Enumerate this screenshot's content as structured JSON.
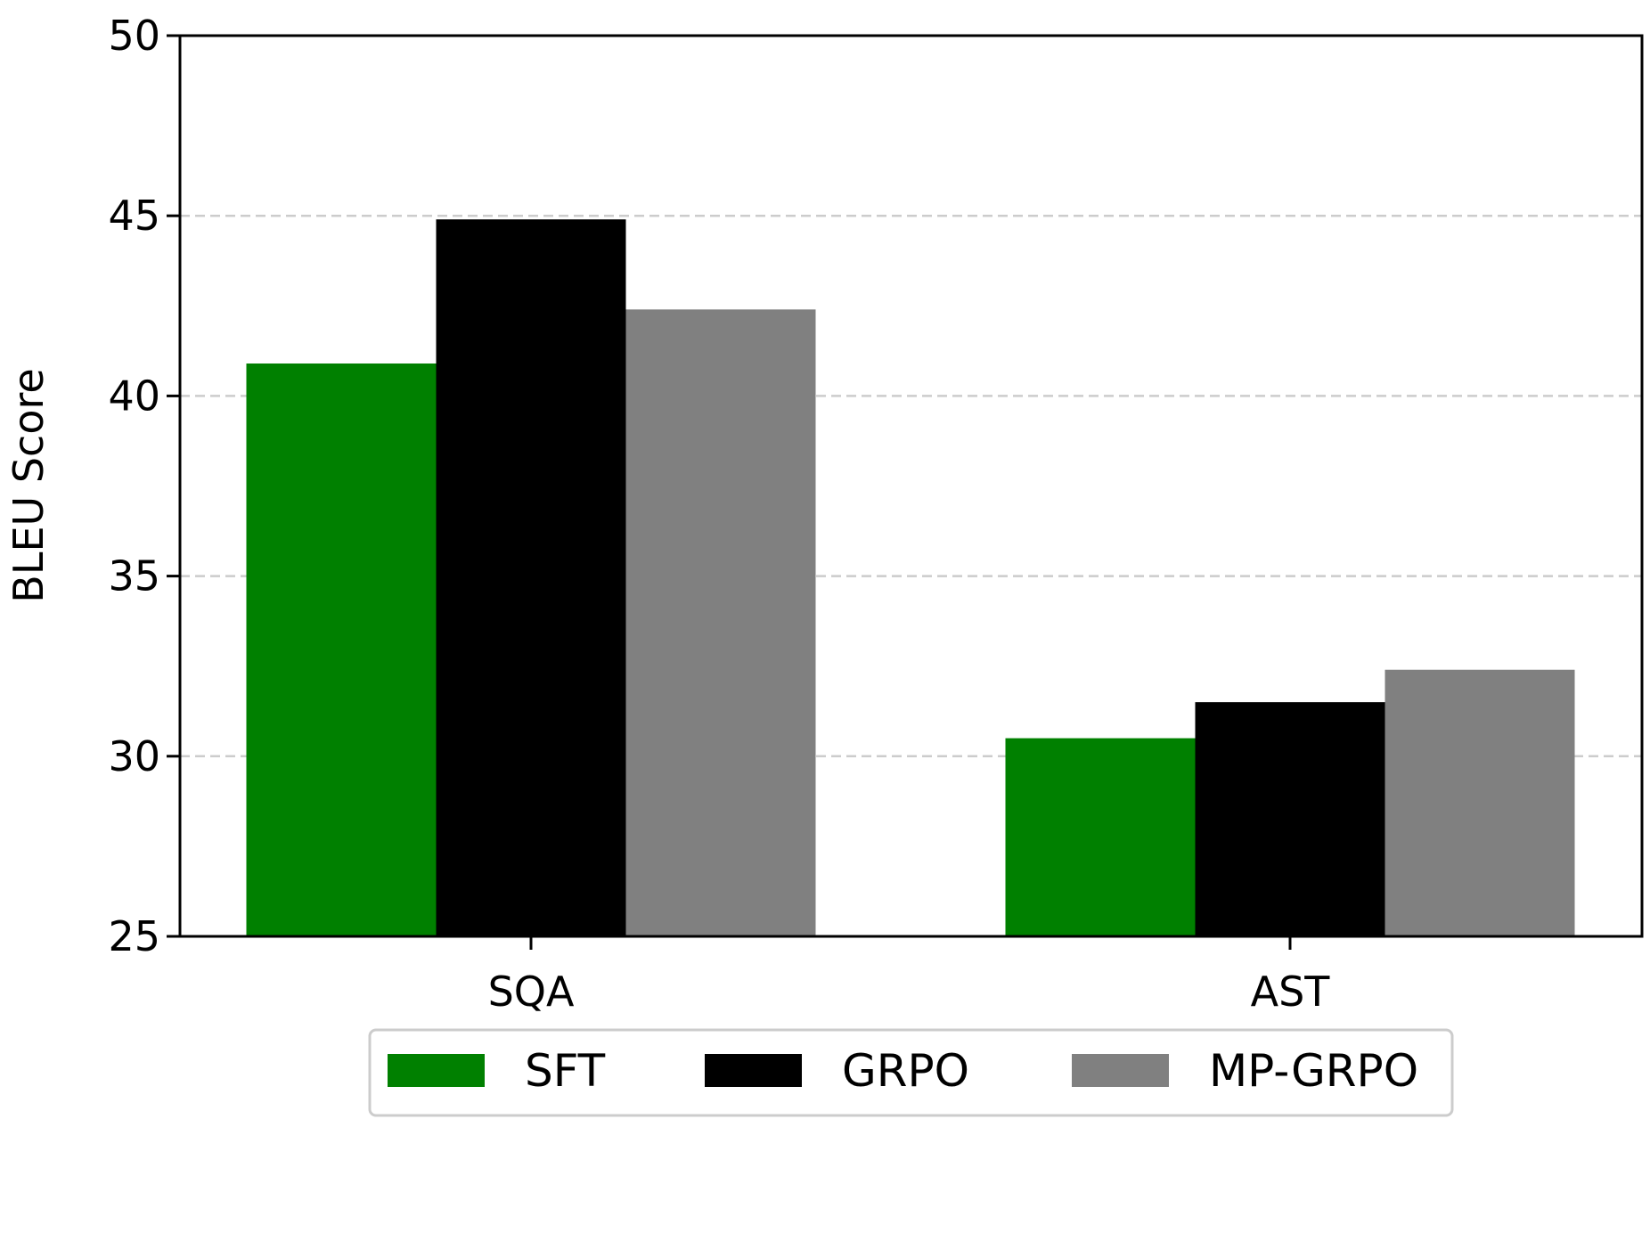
{
  "chart_data": {
    "type": "bar",
    "title": "",
    "xlabel": "",
    "ylabel": "BLEU Score",
    "categories": [
      "SQA",
      "AST"
    ],
    "series": [
      {
        "name": "SFT",
        "color": "#008000",
        "values": [
          40.9,
          30.5
        ]
      },
      {
        "name": "GRPO",
        "color": "#000000",
        "values": [
          44.9,
          31.5
        ]
      },
      {
        "name": "MP-GRPO",
        "color": "#808080",
        "values": [
          42.4,
          32.4
        ]
      }
    ],
    "ylim": [
      25,
      50
    ],
    "yticks": [
      25,
      30,
      35,
      40,
      45,
      50
    ],
    "ytick_labels": [
      "25",
      "30",
      "35",
      "40",
      "45",
      "50"
    ],
    "grid": {
      "axis": "y",
      "style": "dashed",
      "color": "#cccccc"
    },
    "legend": {
      "placement": "bottom-center",
      "columns": 3
    }
  }
}
